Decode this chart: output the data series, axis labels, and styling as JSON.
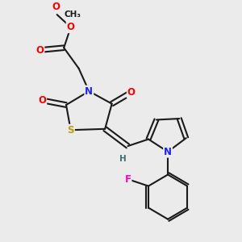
{
  "background_color": "#ebebeb",
  "bond_color": "#1a1a1a",
  "atom_colors": {
    "N": "#2020ff",
    "O": "#ff0000",
    "S": "#b8a000",
    "F": "#ff00cc",
    "H": "#407070",
    "C": "#1a1a1a"
  },
  "lw": 1.5,
  "fs": 8.5
}
